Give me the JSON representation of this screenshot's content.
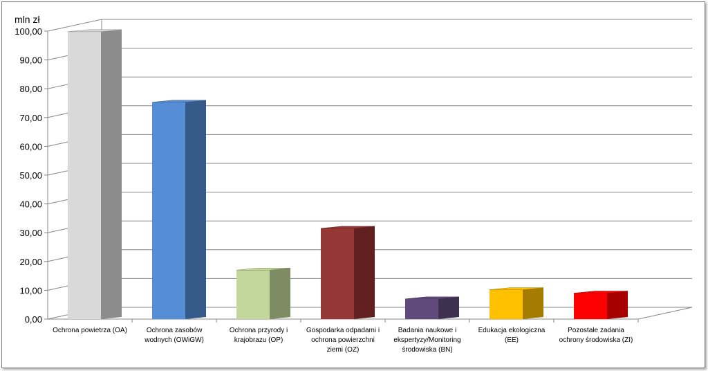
{
  "chart_data": {
    "type": "bar",
    "unit_label": "mln zł",
    "ylim": [
      0,
      100
    ],
    "y_ticks": [
      "0,00",
      "10,00",
      "20,00",
      "30,00",
      "40,00",
      "50,00",
      "60,00",
      "70,00",
      "80,00",
      "90,00",
      "100,00"
    ],
    "categories": [
      [
        "Ochrona powietrza (OA)"
      ],
      [
        "Ochrona zasobów",
        "wodnych (OWiGW)"
      ],
      [
        "Ochrona przyrody i",
        "krajobrazu (OP)"
      ],
      [
        "Gospodarka odpadami i",
        "ochrona powierzchni",
        "ziemi (OZ)"
      ],
      [
        "Badania naukowe i",
        "ekspertyzy/Monitoring",
        "środowiska (BN)"
      ],
      [
        "Edukacja ekologiczna",
        "(EE)"
      ],
      [
        "Pozostałe zadania",
        "ochrony środowiska (ZI)"
      ]
    ],
    "values": [
      99.8,
      75.3,
      17.0,
      31.5,
      7.0,
      10.2,
      9.0
    ],
    "colors": [
      "#d9d9d9",
      "#558ed5",
      "#c3d69b",
      "#953735",
      "#604a7b",
      "#ffc000",
      "#ff0000"
    ],
    "side_colors": [
      "#8c8c8c",
      "#355a8a",
      "#7e8c64",
      "#611f1f",
      "#3e304f",
      "#a67c00",
      "#a60000"
    ],
    "grid": true,
    "legend": "none",
    "style": "3d-column"
  }
}
